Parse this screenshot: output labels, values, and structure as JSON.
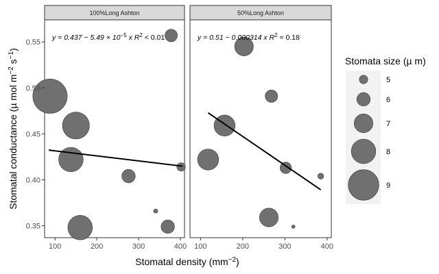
{
  "chart_data": {
    "type": "scatter",
    "facet_labels": [
      "100%Long Ashton",
      "50%Long Ashton"
    ],
    "xlabel": "Stomatal density  (mm",
    "xlabel_sup": "−2",
    "xlabel_end": ")",
    "ylabel": "Stomatal conductance  (µ mol m",
    "ylabel_sup1": "−2",
    "ylabel_mid": " s",
    "ylabel_sup2": "−1",
    "ylabel_end": ")",
    "xlim": [
      75,
      410
    ],
    "ylim": [
      0.337,
      0.574
    ],
    "x_ticks": [
      100,
      200,
      300,
      400
    ],
    "y_ticks": [
      0.35,
      0.4,
      0.45,
      0.5,
      0.55
    ],
    "y_tick_labels": [
      "0.35",
      "0.40",
      "0.45",
      "0.50",
      "0.55"
    ],
    "grid": false,
    "point_color": "#707070",
    "line_color": "#000000",
    "strip_color": "#d9d9d9",
    "panels": [
      {
        "label": "100%Long Ashton",
        "equation": "y = 0.437 − 5.49 × 10",
        "equation_sup": "−5",
        "equation_tail": " x   R",
        "r2_sup": "2",
        "r2_value": " < 0.01",
        "points": [
          {
            "x": 88,
            "y": 0.491,
            "size": 9.6
          },
          {
            "x": 150,
            "y": 0.459,
            "size": 8.4
          },
          {
            "x": 138,
            "y": 0.422,
            "size": 8.0
          },
          {
            "x": 160,
            "y": 0.348,
            "size": 8.0
          },
          {
            "x": 276,
            "y": 0.404,
            "size": 6.0
          },
          {
            "x": 341,
            "y": 0.366,
            "size": 4.0
          },
          {
            "x": 370,
            "y": 0.349,
            "size": 6.0
          },
          {
            "x": 378,
            "y": 0.557,
            "size": 5.8
          },
          {
            "x": 402,
            "y": 0.414,
            "size": 5.0
          }
        ],
        "fit": {
          "x": [
            85,
            405
          ],
          "y": [
            0.4323,
            0.4148
          ]
        }
      },
      {
        "label": "50%Long Ashton",
        "equation": "y = 0.51 − 0.000314 x   R",
        "equation_sup": "",
        "equation_tail": "",
        "r2_sup": "2",
        "r2_value": " = 0.18",
        "points": [
          {
            "x": 118,
            "y": 0.422,
            "size": 7.4
          },
          {
            "x": 157,
            "y": 0.459,
            "size": 7.4
          },
          {
            "x": 203,
            "y": 0.545,
            "size": 7.0
          },
          {
            "x": 268,
            "y": 0.491,
            "size": 5.8
          },
          {
            "x": 262,
            "y": 0.359,
            "size": 7.0
          },
          {
            "x": 302,
            "y": 0.413,
            "size": 5.6
          },
          {
            "x": 320,
            "y": 0.349,
            "size": 3.8
          },
          {
            "x": 385,
            "y": 0.404,
            "size": 4.4
          }
        ],
        "fit": {
          "x": [
            118,
            385
          ],
          "y": [
            0.4729,
            0.3891
          ]
        }
      }
    ],
    "legend": {
      "title": "Stomata size  (µ m)",
      "position": "right",
      "entries": [
        {
          "label": "5",
          "size": 5
        },
        {
          "label": "6",
          "size": 6
        },
        {
          "label": "7",
          "size": 7
        },
        {
          "label": "8",
          "size": 8
        },
        {
          "label": "9",
          "size": 9
        }
      ]
    }
  }
}
